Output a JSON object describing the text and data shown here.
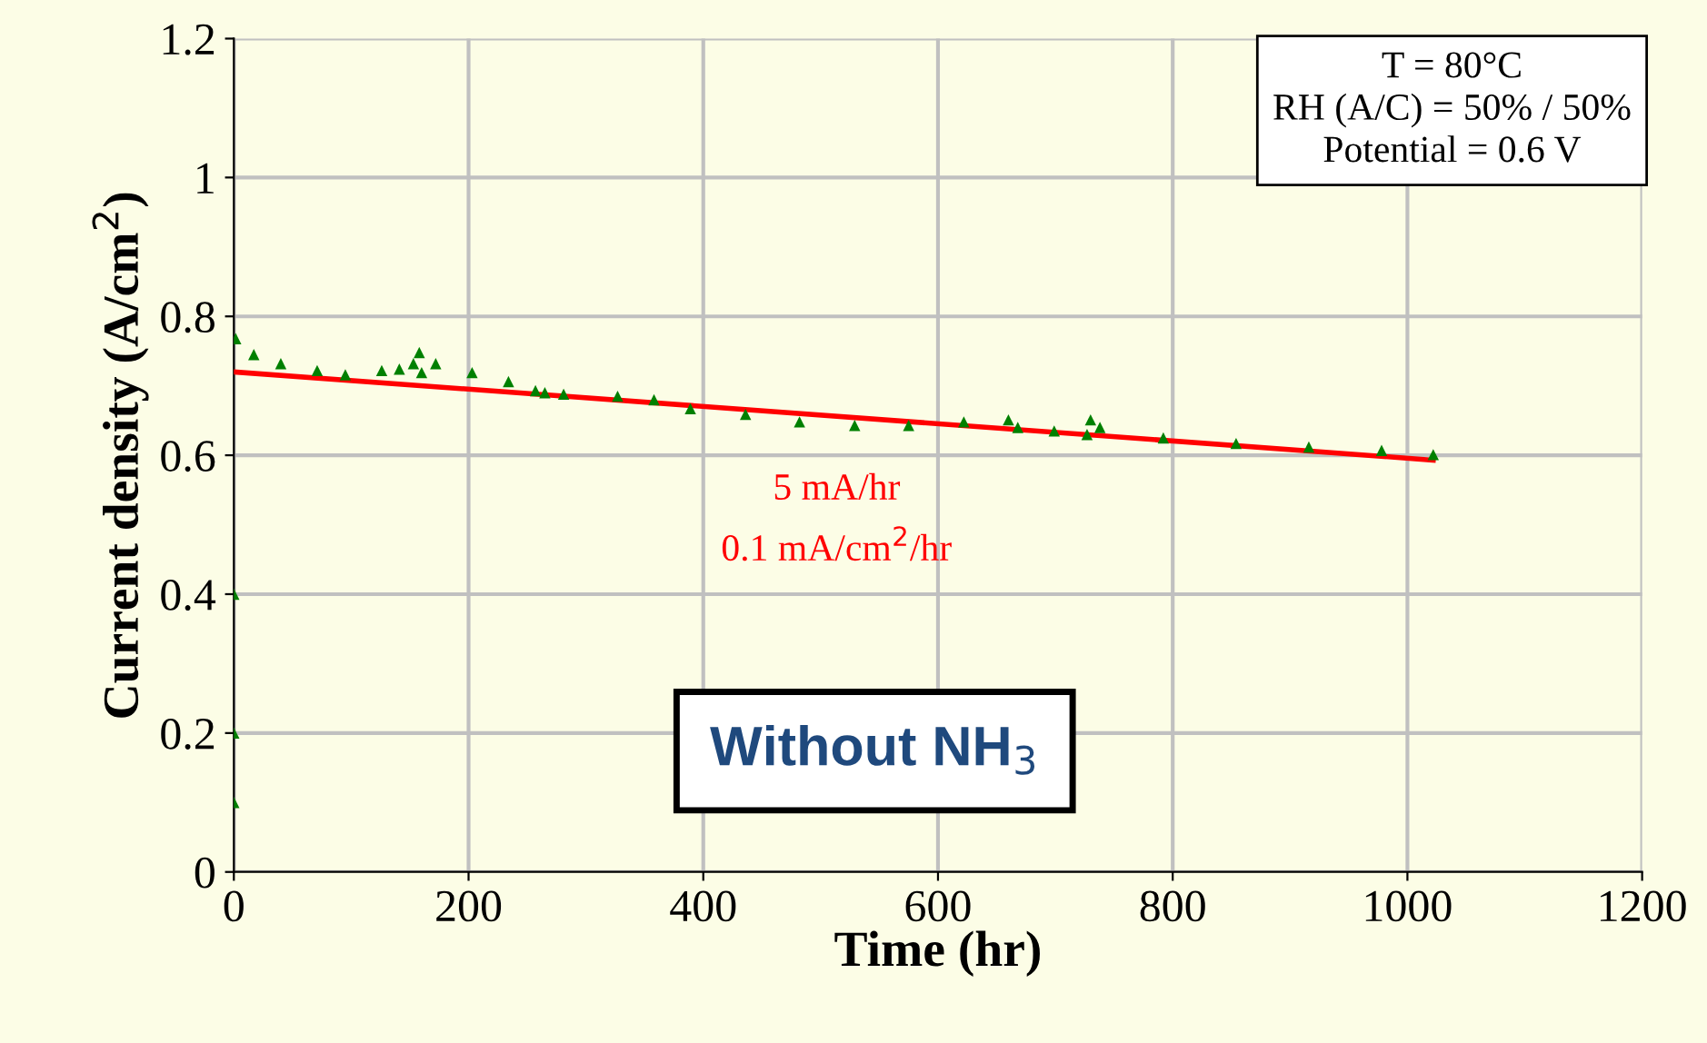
{
  "chart_data": {
    "type": "scatter",
    "xlabel": "Time (hr)",
    "ylabel": "Current density (A/cm$^{2}$)",
    "xlim": [
      0,
      1200
    ],
    "xticks": [
      0,
      200,
      400,
      600,
      800,
      1000,
      1200
    ],
    "ylim": [
      0,
      1.2
    ],
    "yticks": [
      0,
      {
        "value": 0.2,
        "label": "0.2"
      },
      {
        "value": 0.4,
        "label": "0.4"
      },
      {
        "value": 0.6,
        "label": "0.6"
      },
      {
        "value": 0.8,
        "label": "0.8"
      },
      1,
      {
        "value": 1.2,
        "label": "1.2"
      }
    ],
    "grid": true,
    "series": [
      {
        "marker": "triangle",
        "color": "#008000",
        "x": [
          0,
          0,
          0,
          1.6,
          17,
          40,
          71,
          95,
          126,
          141,
          153,
          158,
          160,
          172,
          203,
          234,
          257,
          265,
          281,
          327,
          358,
          389,
          436,
          482,
          529,
          575,
          622,
          660,
          668,
          699,
          727,
          730,
          738,
          792,
          854,
          916,
          978,
          1022
        ],
        "values": [
          0.1,
          0.2,
          0.4,
          0.768,
          0.745,
          0.732,
          0.722,
          0.716,
          0.722,
          0.724,
          0.732,
          0.748,
          0.719,
          0.732,
          0.719,
          0.706,
          0.693,
          0.69,
          0.688,
          0.685,
          0.68,
          0.667,
          0.659,
          0.648,
          0.643,
          0.643,
          0.648,
          0.651,
          0.64,
          0.635,
          0.63,
          0.651,
          0.64,
          0.625,
          0.617,
          0.612,
          0.607,
          0.601
        ]
      },
      {
        "type": "line",
        "color": "#ff0000",
        "x": [
          0,
          1022
        ],
        "values": [
          0.72,
          0.593
        ]
      }
    ],
    "annotations": [
      "T = 80°C",
      "RH (A/C) = 50% / 50%",
      "Potential = 0.6 V",
      "5 mA/hr",
      "0.1 mA/cm$^{2}$/hr",
      "Without NH$_{3}$"
    ]
  }
}
